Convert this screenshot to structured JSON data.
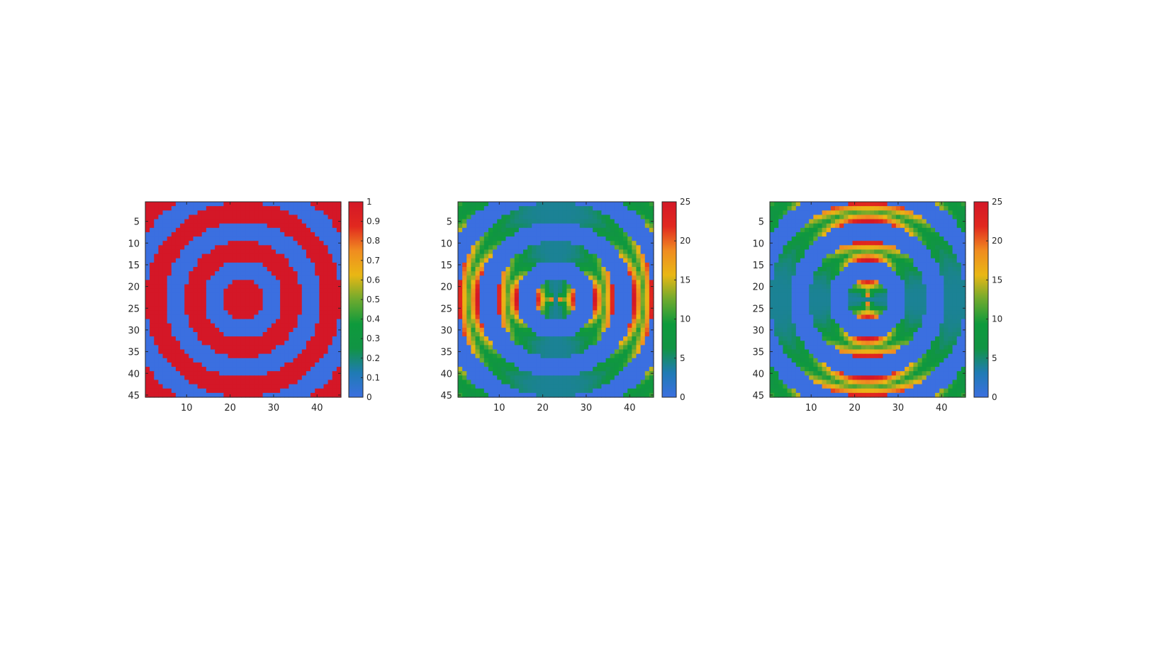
{
  "chart_data": [
    {
      "type": "heatmap",
      "pattern": "binary-rings",
      "grid_size": 45,
      "ring_period": 9,
      "x_ticks": [
        10,
        20,
        30,
        40
      ],
      "y_ticks": [
        5,
        10,
        15,
        20,
        25,
        30,
        35,
        40,
        45
      ],
      "xlim": [
        0.5,
        45.5
      ],
      "ylim": [
        0.5,
        45.5
      ],
      "clim": [
        0,
        1
      ],
      "colorbar_ticks": [
        "0",
        "0.1",
        "0.2",
        "0.3",
        "0.4",
        "0.5",
        "0.6",
        "0.7",
        "0.8",
        "0.9",
        "1"
      ],
      "values_description": "value 1 (red) on rings, 0 (blue) between rings",
      "colormap": [
        "#3B6FE0",
        "#1F7BB4",
        "#119444",
        "#0E9A3C",
        "#6EAA2E",
        "#E9B714",
        "#F08C20",
        "#E1281F",
        "#D41727"
      ]
    },
    {
      "type": "heatmap",
      "pattern": "horizontal-gradient-rings",
      "grid_size": 45,
      "ring_period": 9,
      "x_ticks": [
        10,
        20,
        30,
        40
      ],
      "y_ticks": [
        5,
        10,
        15,
        20,
        25,
        30,
        35,
        40,
        45
      ],
      "xlim": [
        0.5,
        45.5
      ],
      "ylim": [
        0.5,
        45.5
      ],
      "clim": [
        0,
        25
      ],
      "colorbar_ticks": [
        "0",
        "5",
        "10",
        "15",
        "20",
        "25"
      ],
      "values_description": "0 between rings, up to ~25 at ring edges along x",
      "colormap": [
        "#3B6FE0",
        "#1F7BB4",
        "#119444",
        "#0E9A3C",
        "#6EAA2E",
        "#E9B714",
        "#F08C20",
        "#E1281F",
        "#D41727"
      ]
    },
    {
      "type": "heatmap",
      "pattern": "vertical-gradient-rings",
      "grid_size": 45,
      "ring_period": 9,
      "x_ticks": [
        10,
        20,
        30,
        40
      ],
      "y_ticks": [
        5,
        10,
        15,
        20,
        25,
        30,
        35,
        40,
        45
      ],
      "xlim": [
        0.5,
        45.5
      ],
      "ylim": [
        0.5,
        45.5
      ],
      "clim": [
        0,
        25
      ],
      "colorbar_ticks": [
        "0",
        "5",
        "10",
        "15",
        "20",
        "25"
      ],
      "values_description": "0 between rings, up to ~25 at ring edges along y",
      "colormap": [
        "#3B6FE0",
        "#1F7BB4",
        "#119444",
        "#0E9A3C",
        "#6EAA2E",
        "#E9B714",
        "#F08C20",
        "#E1281F",
        "#D41727"
      ]
    }
  ]
}
